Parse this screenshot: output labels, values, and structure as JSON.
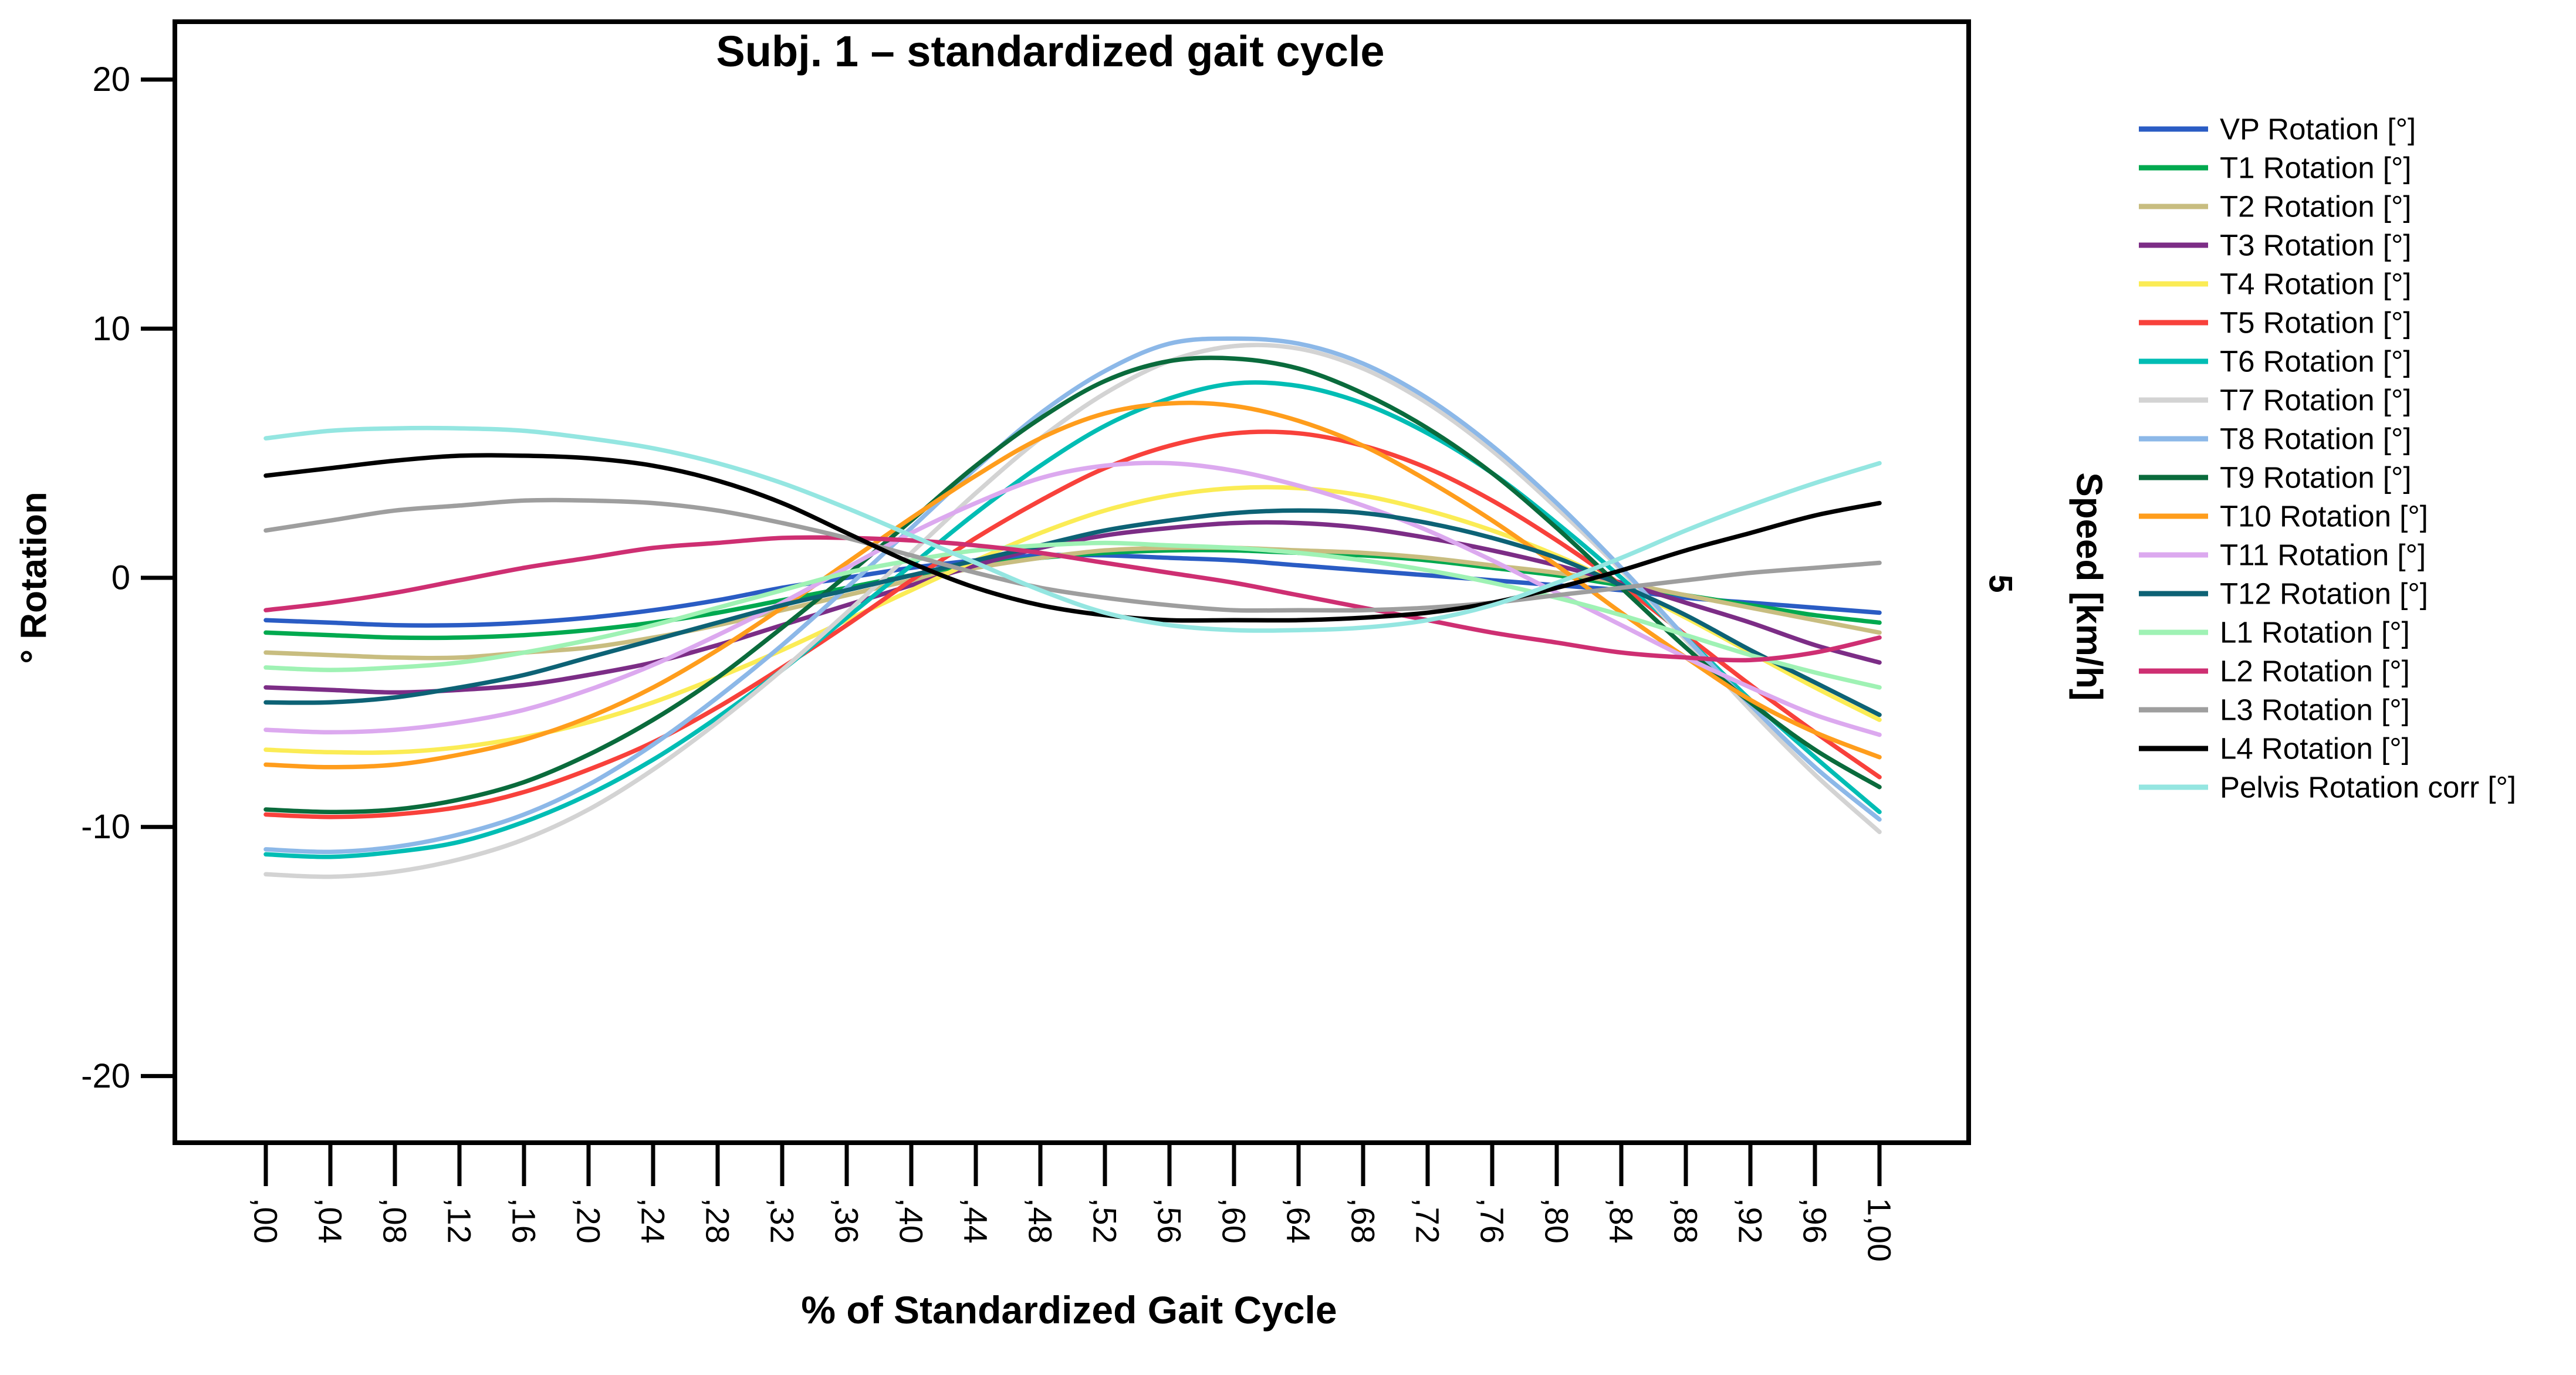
{
  "title": "Subj. 1 – standardized gait cycle",
  "axes": {
    "left": {
      "label": "° Rotation",
      "tick_labels": [
        "20",
        "10",
        "0",
        "-10",
        "-20"
      ],
      "tick_values": [
        20,
        10,
        0,
        -10,
        -20
      ]
    },
    "bottom": {
      "label": "% of Standardized Gait Cycle"
    },
    "right": {
      "label": "Speed [km/h]",
      "tick_label": "5"
    }
  },
  "chart_data": {
    "type": "line",
    "title": "Subj. 1 – standardized gait cycle",
    "xlabel": "% of Standardized Gait Cycle",
    "ylabel": "° Rotation",
    "ylabel_right": "Speed [km/h]",
    "right_axis_tick": "5",
    "grid": false,
    "legend_position": "right",
    "ylim": [
      -22.7,
      22.3
    ],
    "xlim_percent": [
      -5.6,
      105.6
    ],
    "y_ticks": [
      20,
      10,
      0,
      -10,
      -20
    ],
    "x_percent": [
      0,
      4,
      8,
      12,
      16,
      20,
      24,
      28,
      32,
      36,
      40,
      44,
      48,
      52,
      56,
      60,
      64,
      68,
      72,
      76,
      80,
      84,
      88,
      92,
      96,
      100
    ],
    "x_tick_labels": [
      ",00",
      ",04",
      ",08",
      ",12",
      ",16",
      ",20",
      ",24",
      ",28",
      ",32",
      ",36",
      ",40",
      ",44",
      ",48",
      ",52",
      ",56",
      ",60",
      ",64",
      ",68",
      ",72",
      ",76",
      ",80",
      ",84",
      ",88",
      ",92",
      ",96",
      "1,00"
    ],
    "series": [
      {
        "name": "VP Rotation [°]",
        "color": "#2A5CC4",
        "values": [
          -1.7,
          -1.8,
          -1.9,
          -1.9,
          -1.8,
          -1.6,
          -1.3,
          -0.9,
          -0.4,
          0.0,
          0.4,
          0.7,
          0.9,
          0.9,
          0.8,
          0.7,
          0.5,
          0.3,
          0.1,
          -0.1,
          -0.3,
          -0.5,
          -0.8,
          -1.0,
          -1.2,
          -1.4
        ]
      },
      {
        "name": "T1 Rotation [°]",
        "color": "#00A94F",
        "values": [
          -2.2,
          -2.3,
          -2.4,
          -2.4,
          -2.3,
          -2.1,
          -1.8,
          -1.4,
          -0.9,
          -0.4,
          0.1,
          0.5,
          0.8,
          1.0,
          1.1,
          1.1,
          1.0,
          0.9,
          0.7,
          0.4,
          0.1,
          -0.3,
          -0.7,
          -1.1,
          -1.5,
          -1.8
        ]
      },
      {
        "name": "T2 Rotation [°]",
        "color": "#C8BD80",
        "values": [
          -3.0,
          -3.1,
          -3.2,
          -3.2,
          -3.0,
          -2.8,
          -2.4,
          -1.9,
          -1.3,
          -0.7,
          -0.1,
          0.4,
          0.8,
          1.1,
          1.2,
          1.2,
          1.1,
          1.0,
          0.8,
          0.5,
          0.2,
          -0.2,
          -0.7,
          -1.2,
          -1.7,
          -2.2
        ]
      },
      {
        "name": "T3 Rotation [°]",
        "color": "#7C2D86",
        "values": [
          -4.4,
          -4.5,
          -4.6,
          -4.5,
          -4.3,
          -3.9,
          -3.4,
          -2.7,
          -1.9,
          -1.1,
          -0.3,
          0.5,
          1.2,
          1.7,
          2.0,
          2.2,
          2.2,
          2.0,
          1.6,
          1.1,
          0.5,
          -0.2,
          -1.0,
          -1.8,
          -2.7,
          -3.4
        ]
      },
      {
        "name": "T4 Rotation [°]",
        "color": "#FBEC55",
        "values": [
          -6.9,
          -7.0,
          -7.0,
          -6.8,
          -6.4,
          -5.8,
          -5.0,
          -4.0,
          -2.9,
          -1.7,
          -0.5,
          0.7,
          1.8,
          2.7,
          3.3,
          3.6,
          3.6,
          3.3,
          2.7,
          1.9,
          0.9,
          -0.3,
          -1.6,
          -3.0,
          -4.4,
          -5.7
        ]
      },
      {
        "name": "T5 Rotation [°]",
        "color": "#F8413B",
        "values": [
          -9.5,
          -9.6,
          -9.5,
          -9.2,
          -8.6,
          -7.7,
          -6.6,
          -5.2,
          -3.6,
          -1.9,
          -0.1,
          1.6,
          3.1,
          4.4,
          5.3,
          5.8,
          5.8,
          5.3,
          4.4,
          3.1,
          1.5,
          -0.3,
          -2.3,
          -4.3,
          -6.2,
          -8.0
        ]
      },
      {
        "name": "T6 Rotation [°]",
        "color": "#00BDB4",
        "values": [
          -11.1,
          -11.2,
          -11.0,
          -10.6,
          -9.8,
          -8.7,
          -7.3,
          -5.6,
          -3.7,
          -1.6,
          0.5,
          2.6,
          4.5,
          6.1,
          7.2,
          7.8,
          7.7,
          7.0,
          5.8,
          4.2,
          2.2,
          0.0,
          -2.4,
          -4.9,
          -7.2,
          -9.4
        ]
      },
      {
        "name": "T7 Rotation [°]",
        "color": "#D3D3D3",
        "values": [
          -11.9,
          -12.0,
          -11.8,
          -11.3,
          -10.5,
          -9.3,
          -7.7,
          -5.8,
          -3.7,
          -1.4,
          1.0,
          3.4,
          5.6,
          7.4,
          8.7,
          9.3,
          9.2,
          8.4,
          7.0,
          5.1,
          2.8,
          0.3,
          -2.5,
          -5.3,
          -7.9,
          -10.2
        ]
      },
      {
        "name": "T8 Rotation [°]",
        "color": "#8CB8E8",
        "values": [
          -10.9,
          -11.0,
          -10.8,
          -10.3,
          -9.5,
          -8.3,
          -6.7,
          -4.8,
          -2.7,
          -0.4,
          2.0,
          4.4,
          6.6,
          8.3,
          9.4,
          9.6,
          9.4,
          8.6,
          7.2,
          5.3,
          3.0,
          0.4,
          -2.4,
          -5.1,
          -7.6,
          -9.7
        ]
      },
      {
        "name": "T9 Rotation [°]",
        "color": "#0A6B3C",
        "values": [
          -9.3,
          -9.4,
          -9.3,
          -8.9,
          -8.2,
          -7.1,
          -5.7,
          -4.0,
          -2.0,
          0.1,
          2.3,
          4.5,
          6.4,
          7.9,
          8.7,
          8.8,
          8.4,
          7.4,
          6.0,
          4.2,
          2.0,
          -0.4,
          -2.8,
          -5.0,
          -6.9,
          -8.4
        ]
      },
      {
        "name": "T10 Rotation [°]",
        "color": "#FF9D1C",
        "values": [
          -7.5,
          -7.6,
          -7.5,
          -7.1,
          -6.5,
          -5.6,
          -4.4,
          -2.9,
          -1.2,
          0.6,
          2.4,
          4.1,
          5.6,
          6.6,
          7.0,
          6.9,
          6.3,
          5.3,
          3.9,
          2.3,
          0.5,
          -1.4,
          -3.2,
          -4.9,
          -6.2,
          -7.2
        ]
      },
      {
        "name": "T11 Rotation [°]",
        "color": "#DCA9EF",
        "values": [
          -6.1,
          -6.2,
          -6.1,
          -5.8,
          -5.3,
          -4.5,
          -3.5,
          -2.3,
          -1.0,
          0.4,
          1.8,
          3.0,
          4.0,
          4.5,
          4.6,
          4.3,
          3.7,
          2.9,
          1.9,
          0.7,
          -0.6,
          -1.9,
          -3.2,
          -4.4,
          -5.5,
          -6.3
        ]
      },
      {
        "name": "T12 Rotation [°]",
        "color": "#0D6275",
        "values": [
          -5.0,
          -5.0,
          -4.8,
          -4.4,
          -3.9,
          -3.2,
          -2.5,
          -1.8,
          -1.1,
          -0.5,
          0.1,
          0.7,
          1.3,
          1.9,
          2.3,
          2.6,
          2.7,
          2.6,
          2.2,
          1.6,
          0.8,
          -0.3,
          -1.5,
          -2.9,
          -4.2,
          -5.5
        ]
      },
      {
        "name": "L1 Rotation [°]",
        "color": "#9FF2B4",
        "values": [
          -3.6,
          -3.7,
          -3.6,
          -3.4,
          -3.0,
          -2.5,
          -1.9,
          -1.2,
          -0.5,
          0.2,
          0.7,
          1.1,
          1.3,
          1.4,
          1.3,
          1.2,
          1.0,
          0.7,
          0.3,
          -0.2,
          -0.8,
          -1.5,
          -2.3,
          -3.1,
          -3.8,
          -4.4
        ]
      },
      {
        "name": "L2 Rotation [°]",
        "color": "#CE2F72",
        "values": [
          -1.3,
          -1.0,
          -0.6,
          -0.1,
          0.4,
          0.8,
          1.2,
          1.4,
          1.6,
          1.6,
          1.5,
          1.3,
          1.0,
          0.6,
          0.2,
          -0.2,
          -0.7,
          -1.2,
          -1.7,
          -2.2,
          -2.6,
          -3.0,
          -3.2,
          -3.3,
          -3.0,
          -2.4
        ]
      },
      {
        "name": "L3 Rotation [°]",
        "color": "#9E9E9E",
        "values": [
          1.9,
          2.3,
          2.7,
          2.9,
          3.1,
          3.1,
          3.0,
          2.7,
          2.2,
          1.6,
          0.9,
          0.2,
          -0.4,
          -0.8,
          -1.1,
          -1.3,
          -1.3,
          -1.3,
          -1.2,
          -1.0,
          -0.7,
          -0.4,
          -0.1,
          0.2,
          0.4,
          0.6
        ]
      },
      {
        "name": "L4 Rotation [°]",
        "color": "#000000",
        "values": [
          4.1,
          4.4,
          4.7,
          4.9,
          4.9,
          4.8,
          4.5,
          3.9,
          3.0,
          1.8,
          0.6,
          -0.4,
          -1.1,
          -1.5,
          -1.7,
          -1.7,
          -1.7,
          -1.6,
          -1.4,
          -1.0,
          -0.4,
          0.3,
          1.1,
          1.8,
          2.5,
          3.0
        ]
      },
      {
        "name": "Pelvis Rotation corr [°]",
        "color": "#94E6E1",
        "values": [
          5.6,
          5.9,
          6.0,
          6.0,
          5.9,
          5.6,
          5.2,
          4.6,
          3.8,
          2.8,
          1.7,
          0.6,
          -0.5,
          -1.4,
          -1.9,
          -2.1,
          -2.1,
          -2.0,
          -1.7,
          -1.1,
          -0.2,
          0.8,
          1.9,
          2.9,
          3.8,
          4.6
        ]
      }
    ]
  }
}
